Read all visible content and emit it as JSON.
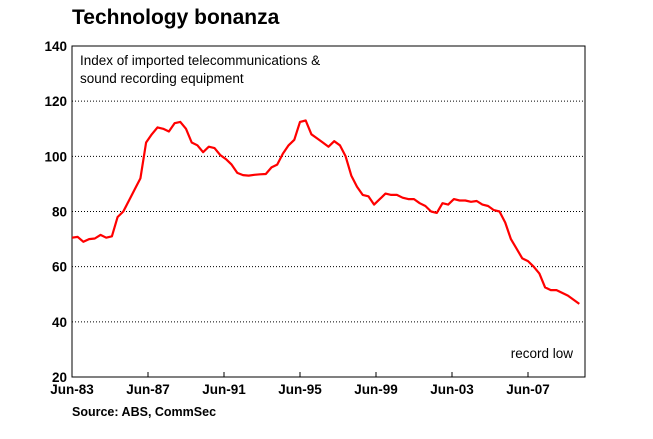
{
  "chart_data": {
    "type": "line",
    "title": "Technology bonanza",
    "subtitle": [
      "Index of imported telecommunications &",
      "sound recording equipment"
    ],
    "source": "Source: ABS, CommSec",
    "annotation": "record low",
    "xlabel": "",
    "ylabel": "",
    "ylim": [
      20,
      140
    ],
    "yticks": [
      20,
      40,
      60,
      80,
      100,
      120,
      140
    ],
    "xticks": [
      "Jun-83",
      "Jun-87",
      "Jun-91",
      "Jun-95",
      "Jun-99",
      "Jun-03",
      "Jun-07"
    ],
    "xlim": [
      1983.5,
      2010.5
    ],
    "grid": true,
    "line_color": "#ff0000",
    "series": [
      {
        "name": "",
        "x": [
          1983.5,
          1983.8,
          1984.1,
          1984.4,
          1984.7,
          1985.0,
          1985.3,
          1985.6,
          1985.9,
          1986.2,
          1986.5,
          1986.8,
          1987.1,
          1987.4,
          1987.7,
          1988.0,
          1988.3,
          1988.6,
          1988.9,
          1989.2,
          1989.5,
          1989.8,
          1990.1,
          1990.4,
          1990.7,
          1991.0,
          1991.3,
          1991.6,
          1991.9,
          1992.2,
          1992.5,
          1992.8,
          1993.1,
          1993.4,
          1993.7,
          1994.0,
          1994.3,
          1994.6,
          1994.9,
          1995.2,
          1995.5,
          1995.8,
          1996.1,
          1996.4,
          1996.7,
          1997.0,
          1997.3,
          1997.6,
          1997.9,
          1998.2,
          1998.5,
          1998.8,
          1999.1,
          1999.4,
          1999.7,
          2000.0,
          2000.3,
          2000.6,
          2000.9,
          2001.2,
          2001.5,
          2001.8,
          2002.1,
          2002.4,
          2002.7,
          2003.0,
          2003.3,
          2003.6,
          2003.9,
          2004.2,
          2004.5,
          2004.8,
          2005.1,
          2005.4,
          2005.7,
          2006.0,
          2006.3,
          2006.6,
          2006.9,
          2007.2,
          2007.5,
          2007.8,
          2008.1,
          2008.4,
          2008.7,
          2009.0,
          2009.3,
          2009.6,
          2009.9,
          2010.2
        ],
        "values": [
          70.5,
          70.8,
          69,
          70,
          70.2,
          71.5,
          70.5,
          71,
          78,
          80,
          84,
          88,
          92,
          105,
          108,
          110.5,
          110,
          109,
          112,
          112.5,
          110,
          105,
          104,
          101.5,
          103.5,
          103,
          100.5,
          99,
          97,
          94,
          93.2,
          93,
          93.3,
          93.5,
          93.6,
          96,
          97,
          101,
          104,
          106,
          112.5,
          113,
          108,
          106.5,
          105,
          103.5,
          105.5,
          104,
          100,
          93,
          89,
          86,
          85.5,
          82.5,
          84.5,
          86.5,
          86,
          86,
          85,
          84.5,
          84.5,
          83,
          82,
          80,
          79.5,
          83,
          82.5,
          84.5,
          84,
          84,
          83.5,
          83.8,
          82.5,
          82,
          80.5,
          80,
          76,
          70,
          66.5,
          63,
          62,
          60,
          57.5,
          52.5,
          51.5,
          51.5,
          50.5,
          49.5,
          48,
          46.5
        ]
      }
    ]
  }
}
